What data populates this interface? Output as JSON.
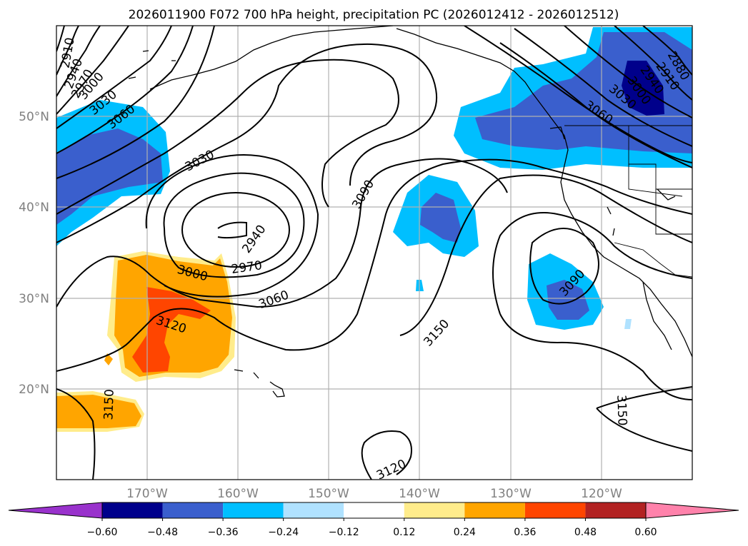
{
  "title": "2026011900 F072 700 hPa height, precipitation PC (2026012412 - 2026012512)",
  "lat_labels": [
    "50°N",
    "40°N",
    "30°N",
    "20°N"
  ],
  "lon_labels": [
    "170°W",
    "160°W",
    "150°W",
    "140°W",
    "130°W",
    "120°W"
  ],
  "contour_labels": [
    "2910",
    "2940",
    "2970",
    "3000",
    "3030",
    "3060",
    "3030",
    "2940",
    "2970",
    "3000",
    "3060",
    "3120",
    "3090",
    "3150",
    "3150",
    "3120",
    "3090",
    "3060",
    "3030",
    "2880",
    "2910",
    "2940",
    "3000",
    "3150"
  ],
  "colorbar": {
    "ticks": [
      "−0.60",
      "−0.48",
      "−0.36",
      "−0.24",
      "−0.12",
      "0.12",
      "0.24",
      "0.36",
      "0.48",
      "0.60"
    ],
    "colors": {
      "under": "#9932cc",
      "bins": [
        "#00008b",
        "#3a5fcd",
        "#00bfff",
        "#b0e2ff",
        "#ffffff",
        "#ffec8b",
        "#ffa500",
        "#ff4500",
        "#b22222"
      ],
      "over": "#ff82ab"
    }
  }
}
